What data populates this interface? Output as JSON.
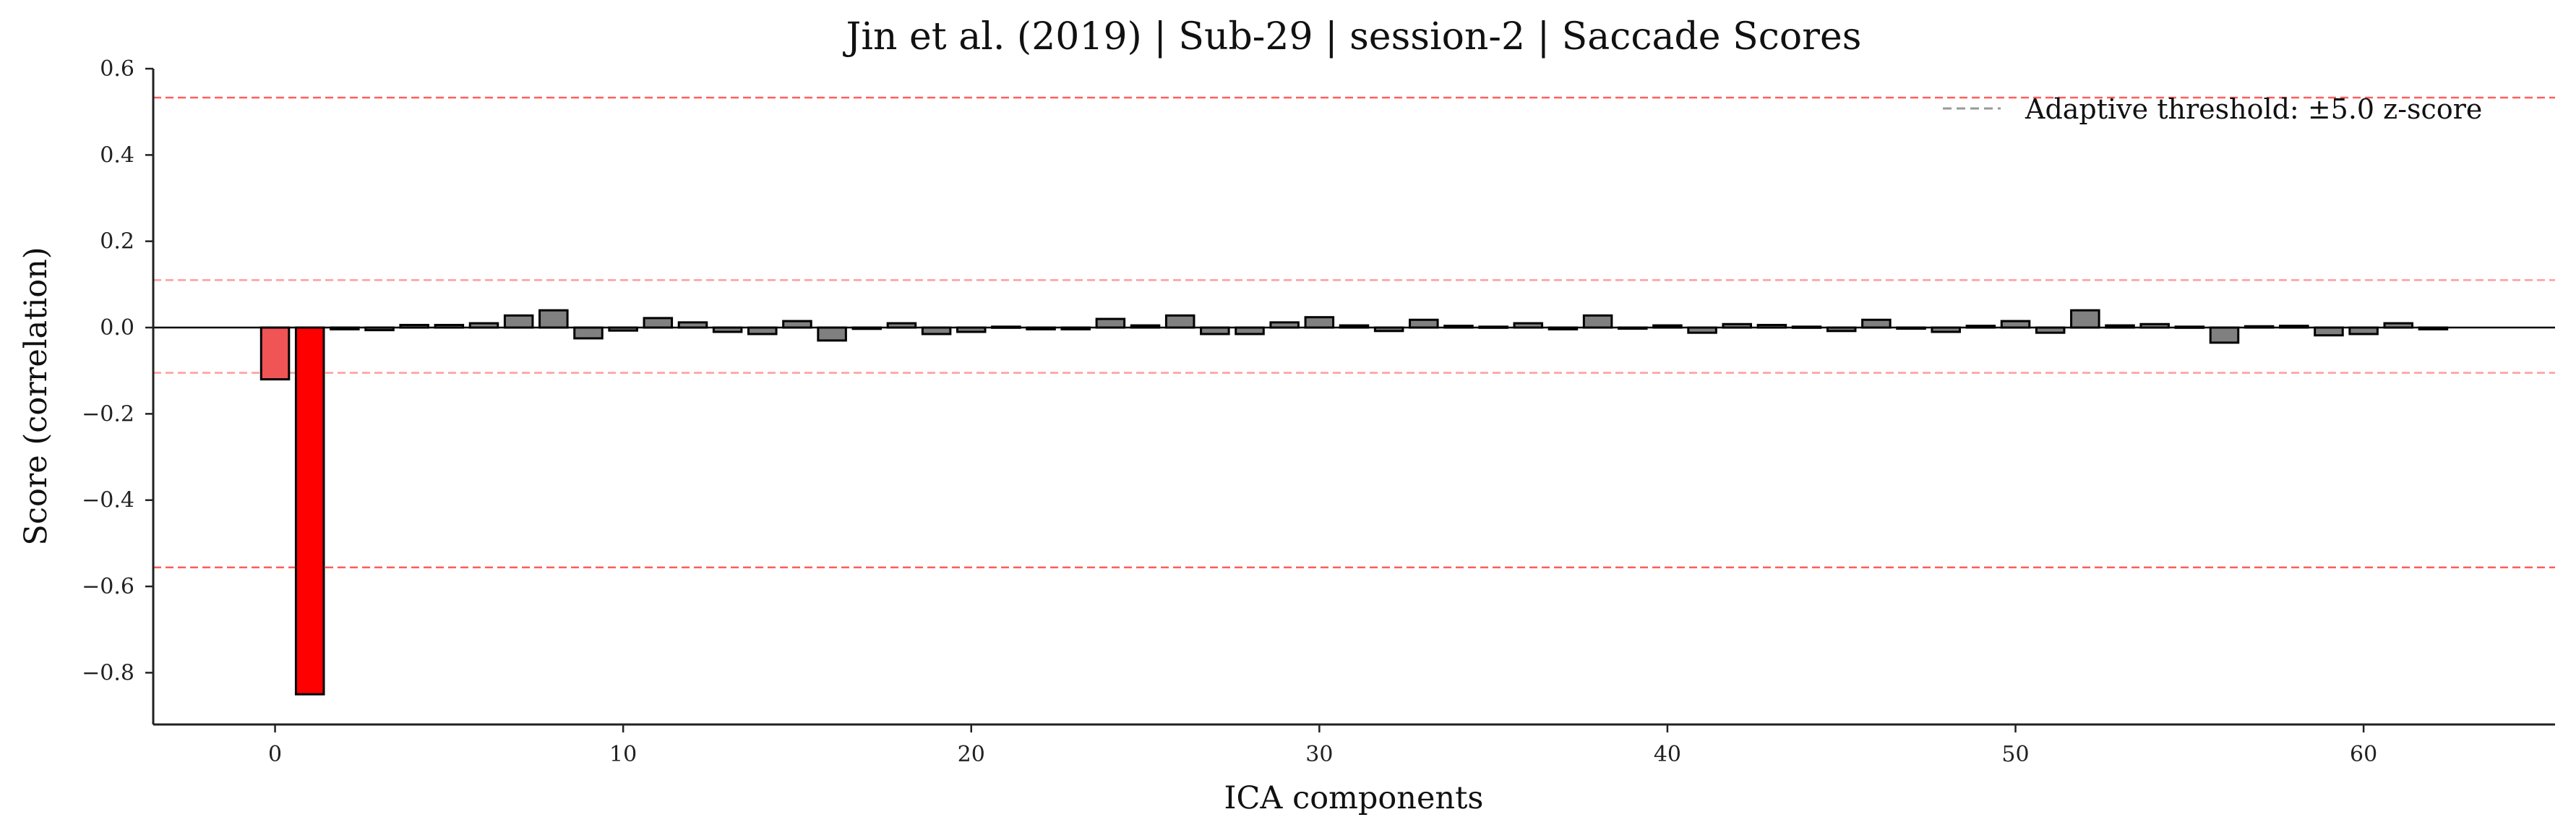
{
  "chart_data": {
    "type": "bar",
    "title": "Jin et al. (2019) | Sub-29 | session-2 | Saccade Scores",
    "xlabel": "ICA components",
    "ylabel": "Score (correlation)",
    "xlim": [
      -3.5,
      65.5
    ],
    "ylim": [
      -0.92,
      0.6
    ],
    "xticks": [
      0,
      10,
      20,
      30,
      40,
      50,
      60
    ],
    "yticks": [
      -0.8,
      -0.6,
      -0.4,
      -0.2,
      0.0,
      0.2,
      0.4,
      0.6
    ],
    "ytick_labels": [
      "−0.8",
      "−0.6",
      "−0.4",
      "−0.2",
      "0.0",
      "0.2",
      "0.4",
      "0.6"
    ],
    "grid": false,
    "legend": {
      "location": "top-right",
      "entries": [
        "Adaptive threshold: ±5.0 z-score"
      ]
    },
    "threshold_lines": {
      "adaptive": [
        0.533,
        -0.556
      ],
      "secondary": [
        0.11,
        -0.105
      ]
    },
    "colors": {
      "default_bar": "#808080",
      "flagged_bar": "#ff0000",
      "flagged_bar_light": "#f05454",
      "bar_edge": "#000000",
      "threshold_line": "#ff4d4d",
      "legend_line": "#9a9a9a",
      "zero_line": "#000000"
    },
    "flagged": [
      {
        "index": 0,
        "tone": "light"
      },
      {
        "index": 1,
        "tone": "strong"
      }
    ],
    "x": [
      0,
      1,
      2,
      3,
      4,
      5,
      6,
      7,
      8,
      9,
      10,
      11,
      12,
      13,
      14,
      15,
      16,
      17,
      18,
      19,
      20,
      21,
      22,
      23,
      24,
      25,
      26,
      27,
      28,
      29,
      30,
      31,
      32,
      33,
      34,
      35,
      36,
      37,
      38,
      39,
      40,
      41,
      42,
      43,
      44,
      45,
      46,
      47,
      48,
      49,
      50,
      51,
      52,
      53,
      54,
      55,
      56,
      57,
      58,
      59,
      60,
      61,
      62
    ],
    "values": [
      -0.12,
      -0.85,
      -0.004,
      -0.006,
      0.006,
      0.006,
      0.01,
      0.028,
      0.04,
      -0.025,
      -0.007,
      0.022,
      0.012,
      -0.01,
      -0.015,
      0.015,
      -0.03,
      -0.003,
      0.01,
      -0.015,
      -0.01,
      0.002,
      -0.004,
      -0.004,
      0.02,
      0.005,
      0.028,
      -0.015,
      -0.015,
      0.012,
      0.024,
      0.005,
      -0.008,
      0.018,
      0.004,
      0.002,
      0.01,
      -0.004,
      0.028,
      -0.002,
      0.005,
      -0.012,
      0.008,
      0.006,
      0.002,
      -0.008,
      0.018,
      -0.002,
      -0.01,
      0.004,
      0.015,
      -0.012,
      0.04,
      0.005,
      0.008,
      0.002,
      -0.035,
      0.003,
      0.004,
      -0.018,
      -0.015,
      0.01,
      -0.004
    ]
  }
}
